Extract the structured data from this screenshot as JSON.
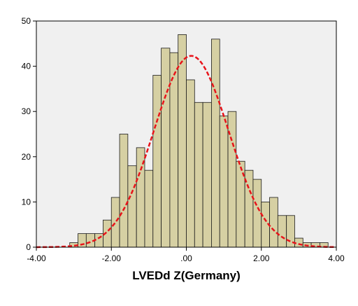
{
  "chart_data": {
    "type": "bar",
    "subtype": "histogram",
    "title": "",
    "xlabel": "LVEDd Z(Germany)",
    "ylabel": "",
    "xlim": [
      -4.0,
      4.0
    ],
    "ylim": [
      0,
      50
    ],
    "x_ticks": [
      -4.0,
      -2.0,
      0.0,
      2.0,
      4.0
    ],
    "x_tick_labels": [
      "-4.00",
      "-2.00",
      ".00",
      "2.00",
      "4.00"
    ],
    "y_ticks": [
      0,
      10,
      20,
      30,
      40,
      50
    ],
    "y_tick_labels": [
      "0",
      "10",
      "20",
      "30",
      "40",
      "50"
    ],
    "grid": false,
    "legend": "none",
    "bin_width": 0.2222,
    "bins": [
      {
        "x0": -3.11,
        "x1": -2.89,
        "count": 1
      },
      {
        "x0": -2.89,
        "x1": -2.67,
        "count": 3
      },
      {
        "x0": -2.67,
        "x1": -2.44,
        "count": 3
      },
      {
        "x0": -2.44,
        "x1": -2.22,
        "count": 3
      },
      {
        "x0": -2.22,
        "x1": -2.0,
        "count": 6
      },
      {
        "x0": -2.0,
        "x1": -1.78,
        "count": 11
      },
      {
        "x0": -1.78,
        "x1": -1.56,
        "count": 25
      },
      {
        "x0": -1.56,
        "x1": -1.33,
        "count": 18
      },
      {
        "x0": -1.33,
        "x1": -1.11,
        "count": 22
      },
      {
        "x0": -1.11,
        "x1": -0.89,
        "count": 17
      },
      {
        "x0": -0.89,
        "x1": -0.67,
        "count": 38
      },
      {
        "x0": -0.67,
        "x1": -0.44,
        "count": 44
      },
      {
        "x0": -0.44,
        "x1": -0.22,
        "count": 43
      },
      {
        "x0": -0.22,
        "x1": 0.0,
        "count": 47
      },
      {
        "x0": 0.0,
        "x1": 0.22,
        "count": 37
      },
      {
        "x0": 0.22,
        "x1": 0.44,
        "count": 32
      },
      {
        "x0": 0.44,
        "x1": 0.67,
        "count": 32
      },
      {
        "x0": 0.67,
        "x1": 0.89,
        "count": 46
      },
      {
        "x0": 0.89,
        "x1": 1.11,
        "count": 29
      },
      {
        "x0": 1.11,
        "x1": 1.33,
        "count": 30
      },
      {
        "x0": 1.33,
        "x1": 1.56,
        "count": 19
      },
      {
        "x0": 1.56,
        "x1": 1.78,
        "count": 17
      },
      {
        "x0": 1.78,
        "x1": 2.0,
        "count": 15
      },
      {
        "x0": 2.0,
        "x1": 2.22,
        "count": 10
      },
      {
        "x0": 2.22,
        "x1": 2.44,
        "count": 11
      },
      {
        "x0": 2.44,
        "x1": 2.67,
        "count": 7
      },
      {
        "x0": 2.67,
        "x1": 2.89,
        "count": 7
      },
      {
        "x0": 2.89,
        "x1": 3.11,
        "count": 2
      },
      {
        "x0": 3.11,
        "x1": 3.33,
        "count": 1
      },
      {
        "x0": 3.33,
        "x1": 3.56,
        "count": 1
      },
      {
        "x0": 3.56,
        "x1": 3.78,
        "count": 1
      }
    ],
    "normal_curve": {
      "mean": 0.13,
      "peak": 42.3,
      "sd": 1.0,
      "style": "dashed",
      "color": "#e8141a"
    },
    "colors": {
      "bar_fill": "#d6d0a3",
      "bar_stroke": "#1a1a1a",
      "plot_background": "#f0f0f0"
    }
  }
}
